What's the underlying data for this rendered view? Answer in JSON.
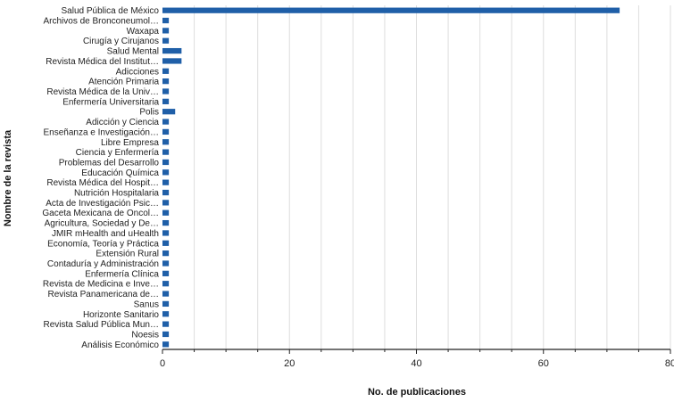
{
  "chart_data": {
    "type": "bar",
    "orientation": "horizontal",
    "xlabel": "No. de publicaciones",
    "ylabel": "Nombre de la revista",
    "xlim": [
      0,
      80
    ],
    "xticks": [
      0,
      20,
      40,
      60,
      80
    ],
    "grid": true,
    "bar_color": "#1f5fa8",
    "categories": [
      "Salud Pública de México",
      "Archivos de Bronconeumol…",
      "Waxapa",
      "Cirugía y Cirujanos",
      "Salud Mental",
      "Revista Médica del Institut…",
      "Adicciones",
      "Atención Primaria",
      "Revista Médica de la Univ…",
      "Enfermería Universitaria",
      "Polis",
      "Adicción y Ciencia",
      "Enseñanza e Investigación…",
      "Libre Empresa",
      "Ciencia y Enfermería",
      "Problemas del Desarrollo",
      "Educación Química",
      "Revista Médica del Hospit…",
      "Nutrición Hospitalaria",
      "Acta de Investigación Psic…",
      "Gaceta Mexicana de Oncol…",
      "Agricultura, Sociedad y De…",
      "JMIR mHealth and uHealth",
      "Economía, Teoría y Práctica",
      "Extensión Rural",
      "Contaduría y Administración",
      "Enfermería Clínica",
      "Revista de Medicina e Inve…",
      "Revista Panamericana de…",
      "Sanus",
      "Horizonte Sanitario",
      "Revista Salud Pública Mun…",
      "Noesis",
      "Análisis Económico"
    ],
    "values": [
      72,
      1,
      1,
      1,
      3,
      3,
      1,
      1,
      1,
      1,
      2,
      1,
      1,
      1,
      1,
      1,
      1,
      1,
      1,
      1,
      1,
      1,
      1,
      1,
      1,
      1,
      1,
      1,
      1,
      1,
      1,
      1,
      1,
      1
    ]
  }
}
